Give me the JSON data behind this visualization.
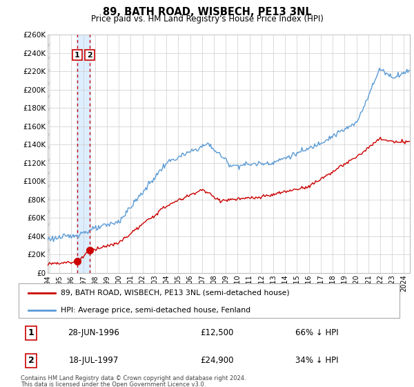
{
  "title": "89, BATH ROAD, WISBECH, PE13 3NL",
  "subtitle": "Price paid vs. HM Land Registry's House Price Index (HPI)",
  "legend_line1": "89, BATH ROAD, WISBECH, PE13 3NL (semi-detached house)",
  "legend_line2": "HPI: Average price, semi-detached house, Fenland",
  "footnote1": "Contains HM Land Registry data © Crown copyright and database right 2024.",
  "footnote2": "This data is licensed under the Open Government Licence v3.0.",
  "table": [
    {
      "num": "1",
      "date": "28-JUN-1996",
      "price": "£12,500",
      "pct": "66% ↓ HPI"
    },
    {
      "num": "2",
      "date": "18-JUL-1997",
      "price": "£24,900",
      "pct": "34% ↓ HPI"
    }
  ],
  "sale1_x": 1996.49,
  "sale1_y": 12500,
  "sale2_x": 1997.54,
  "sale2_y": 24900,
  "hpi_color": "#5b9bd5",
  "price_color": "#cc0000",
  "marker_color": "#cc0000",
  "vline_color": "#cc0000",
  "highlight_color": "#ddeeff",
  "grid_color": "#cccccc",
  "ylim": [
    0,
    260000
  ],
  "yticks": [
    0,
    20000,
    40000,
    60000,
    80000,
    100000,
    120000,
    140000,
    160000,
    180000,
    200000,
    220000,
    240000,
    260000
  ],
  "xlim": [
    1994,
    2024.5
  ],
  "xticks": [
    1994,
    1995,
    1996,
    1997,
    1998,
    1999,
    2000,
    2001,
    2002,
    2003,
    2004,
    2005,
    2006,
    2007,
    2008,
    2009,
    2010,
    2011,
    2012,
    2013,
    2014,
    2015,
    2016,
    2017,
    2018,
    2019,
    2020,
    2021,
    2022,
    2023,
    2024
  ]
}
